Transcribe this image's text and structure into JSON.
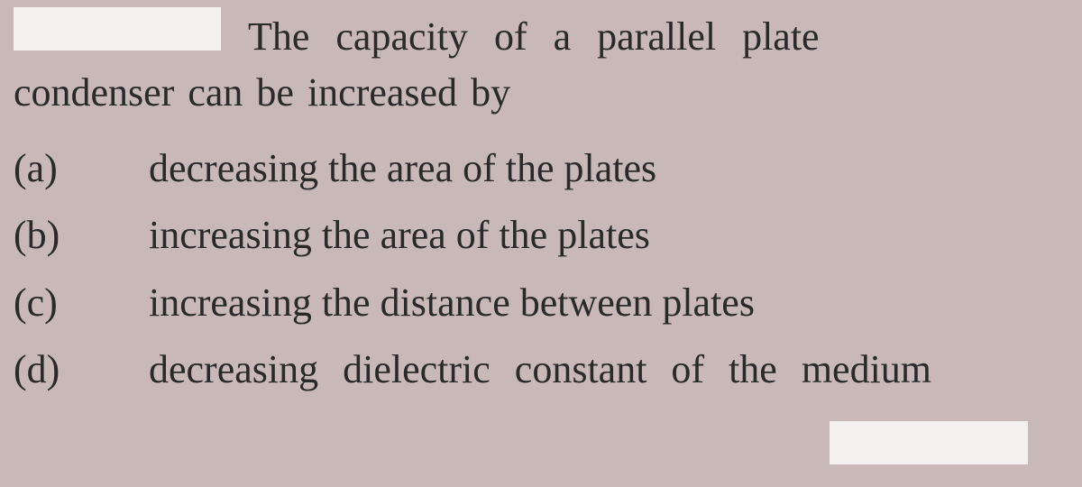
{
  "question": {
    "stem_line1": "The capacity of a parallel plate",
    "stem_line2": "condenser can be increased by"
  },
  "options": {
    "a": {
      "label": "(a)",
      "text": "decreasing the area of the plates"
    },
    "b": {
      "label": "(b)",
      "text": "increasing the area of the plates"
    },
    "c": {
      "label": "(c)",
      "text": "increasing the distance between plates"
    },
    "d": {
      "label": "(d)",
      "text": "decreasing dielectric constant of the medium"
    }
  },
  "style": {
    "background_color": "#c9b8b8",
    "text_color": "#2a2a2a",
    "font_family": "Georgia, serif",
    "base_fontsize": 44,
    "whitebox_color": "#f5f0f0"
  }
}
